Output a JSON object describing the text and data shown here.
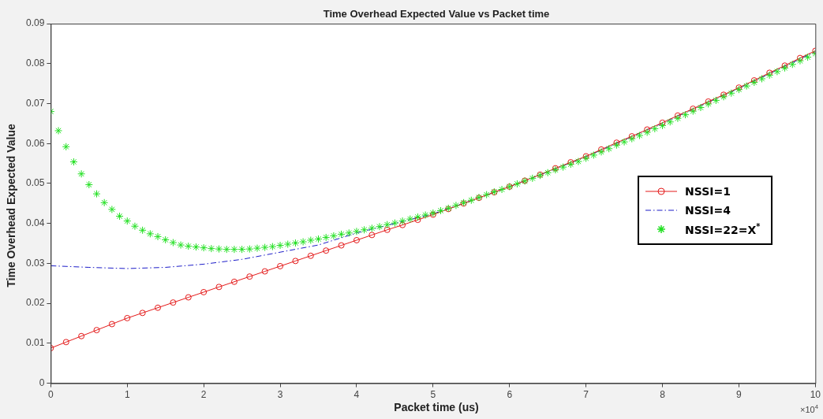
{
  "chart_data": {
    "type": "line",
    "title": "Time Overhead Expected Value vs Packet time",
    "xlabel": "Packet time (us)",
    "ylabel": "Time Overhead Expected Value",
    "x": [
      0,
      0.2,
      0.4,
      0.6,
      0.8,
      1,
      1.2,
      1.4,
      1.6,
      1.8,
      2,
      2.2,
      2.4,
      2.6,
      2.8,
      3,
      3.2,
      3.4,
      3.6,
      3.8,
      4,
      4.2,
      4.4,
      4.6,
      4.8,
      5,
      5.2,
      5.4,
      5.6,
      5.8,
      6,
      6.2,
      6.4,
      6.6,
      6.8,
      7,
      7.2,
      7.4,
      7.6,
      7.8,
      8,
      8.2,
      8.4,
      8.6,
      8.8,
      9,
      9.2,
      9.4,
      9.6,
      9.8,
      10
    ],
    "series": [
      {
        "name": "NSSI=1",
        "type": "line",
        "color": "#e41a1a",
        "marker": "circle",
        "line_style": "solid",
        "values": [
          0.0088,
          0.0103,
          0.0118,
          0.0133,
          0.0148,
          0.0163,
          0.0176,
          0.0189,
          0.0202,
          0.0215,
          0.0228,
          0.0241,
          0.0254,
          0.0267,
          0.028,
          0.0293,
          0.0306,
          0.0319,
          0.0332,
          0.0345,
          0.0358,
          0.0371,
          0.0384,
          0.0396,
          0.0409,
          0.0422,
          0.0436,
          0.045,
          0.0464,
          0.0478,
          0.0492,
          0.0507,
          0.0522,
          0.0538,
          0.0553,
          0.0568,
          0.0585,
          0.0602,
          0.0618,
          0.0635,
          0.0652,
          0.067,
          0.0687,
          0.0705,
          0.0722,
          0.074,
          0.0758,
          0.0777,
          0.0795,
          0.0814,
          0.0832
        ]
      },
      {
        "name": "NSSI=4",
        "type": "line",
        "color": "#1c1cc8",
        "marker": "none",
        "line_style": "dashed",
        "x": [
          0,
          0.5,
          1,
          1.5,
          2,
          2.5,
          3,
          3.5,
          4,
          4.5,
          5,
          5.5,
          6,
          6.5,
          7,
          7.5,
          8,
          8.5,
          9,
          9.5,
          10
        ],
        "values": [
          0.0294,
          0.029,
          0.0287,
          0.029,
          0.0298,
          0.031,
          0.0328,
          0.0346,
          0.0376,
          0.04,
          0.0424,
          0.0457,
          0.0492,
          0.0529,
          0.0567,
          0.0609,
          0.0651,
          0.0695,
          0.0738,
          0.0784,
          0.083
        ]
      },
      {
        "name": "NSSI=22=X$^{*}$",
        "type": "scatter",
        "color": "#22e022",
        "marker": "cross",
        "x": [
          0,
          0.1,
          0.2,
          0.3,
          0.4,
          0.5,
          0.6,
          0.7,
          0.8,
          0.9,
          1,
          1.1,
          1.2,
          1.3,
          1.4,
          1.5,
          1.6,
          1.7,
          1.8,
          1.9,
          2,
          2.1,
          2.2,
          2.3,
          2.4,
          2.5,
          2.6,
          2.7,
          2.8,
          2.9,
          3,
          3.1,
          3.2,
          3.3,
          3.4,
          3.5,
          3.6,
          3.7,
          3.8,
          3.9,
          4,
          4.1,
          4.2,
          4.3,
          4.4,
          4.5,
          4.6,
          4.7,
          4.8,
          4.9,
          5,
          5.1,
          5.2,
          5.3,
          5.4,
          5.5,
          5.6,
          5.7,
          5.8,
          5.9,
          6,
          6.1,
          6.2,
          6.3,
          6.4,
          6.5,
          6.6,
          6.7,
          6.8,
          6.9,
          7,
          7.1,
          7.2,
          7.3,
          7.4,
          7.5,
          7.6,
          7.7,
          7.8,
          7.9,
          8,
          8.1,
          8.2,
          8.3,
          8.4,
          8.5,
          8.6,
          8.7,
          8.8,
          8.9,
          9,
          9.1,
          9.2,
          9.3,
          9.4,
          9.5,
          9.6,
          9.7,
          9.8,
          9.9,
          10
        ],
        "values": [
          0.068,
          0.0632,
          0.0592,
          0.0554,
          0.0524,
          0.0497,
          0.0474,
          0.0452,
          0.0435,
          0.0418,
          0.0406,
          0.0393,
          0.0383,
          0.0374,
          0.0367,
          0.0359,
          0.0352,
          0.0346,
          0.0343,
          0.0341,
          0.0339,
          0.0337,
          0.0336,
          0.0335,
          0.0335,
          0.0335,
          0.0336,
          0.0338,
          0.034,
          0.0342,
          0.0345,
          0.0348,
          0.0351,
          0.0354,
          0.0358,
          0.0361,
          0.0365,
          0.0369,
          0.0373,
          0.0376,
          0.038,
          0.0384,
          0.0388,
          0.0392,
          0.0397,
          0.0401,
          0.0406,
          0.0411,
          0.0416,
          0.0421,
          0.0426,
          0.0432,
          0.0438,
          0.0445,
          0.0452,
          0.0458,
          0.0465,
          0.0472,
          0.0479,
          0.0485,
          0.0492,
          0.0499,
          0.0506,
          0.0513,
          0.052,
          0.0527,
          0.0534,
          0.0541,
          0.0548,
          0.0555,
          0.0563,
          0.0571,
          0.0579,
          0.0587,
          0.0596,
          0.0604,
          0.0612,
          0.062,
          0.0628,
          0.0637,
          0.0645,
          0.0654,
          0.0663,
          0.0672,
          0.0681,
          0.069,
          0.0699,
          0.0708,
          0.0717,
          0.0726,
          0.0735,
          0.0744,
          0.0753,
          0.0762,
          0.0771,
          0.078,
          0.0789,
          0.0798,
          0.0807,
          0.0816,
          0.0825
        ]
      }
    ],
    "xlim": [
      0,
      10
    ],
    "xticks": [
      0,
      1,
      2,
      3,
      4,
      5,
      6,
      7,
      8,
      9,
      10
    ],
    "ylim": [
      0,
      0.09
    ],
    "yticks": [
      0,
      0.01,
      0.02,
      0.03,
      0.04,
      0.05,
      0.06,
      0.07,
      0.08,
      0.09
    ],
    "annotations": [
      "×10$^{4}$"
    ],
    "grid": false,
    "legend": "right"
  }
}
